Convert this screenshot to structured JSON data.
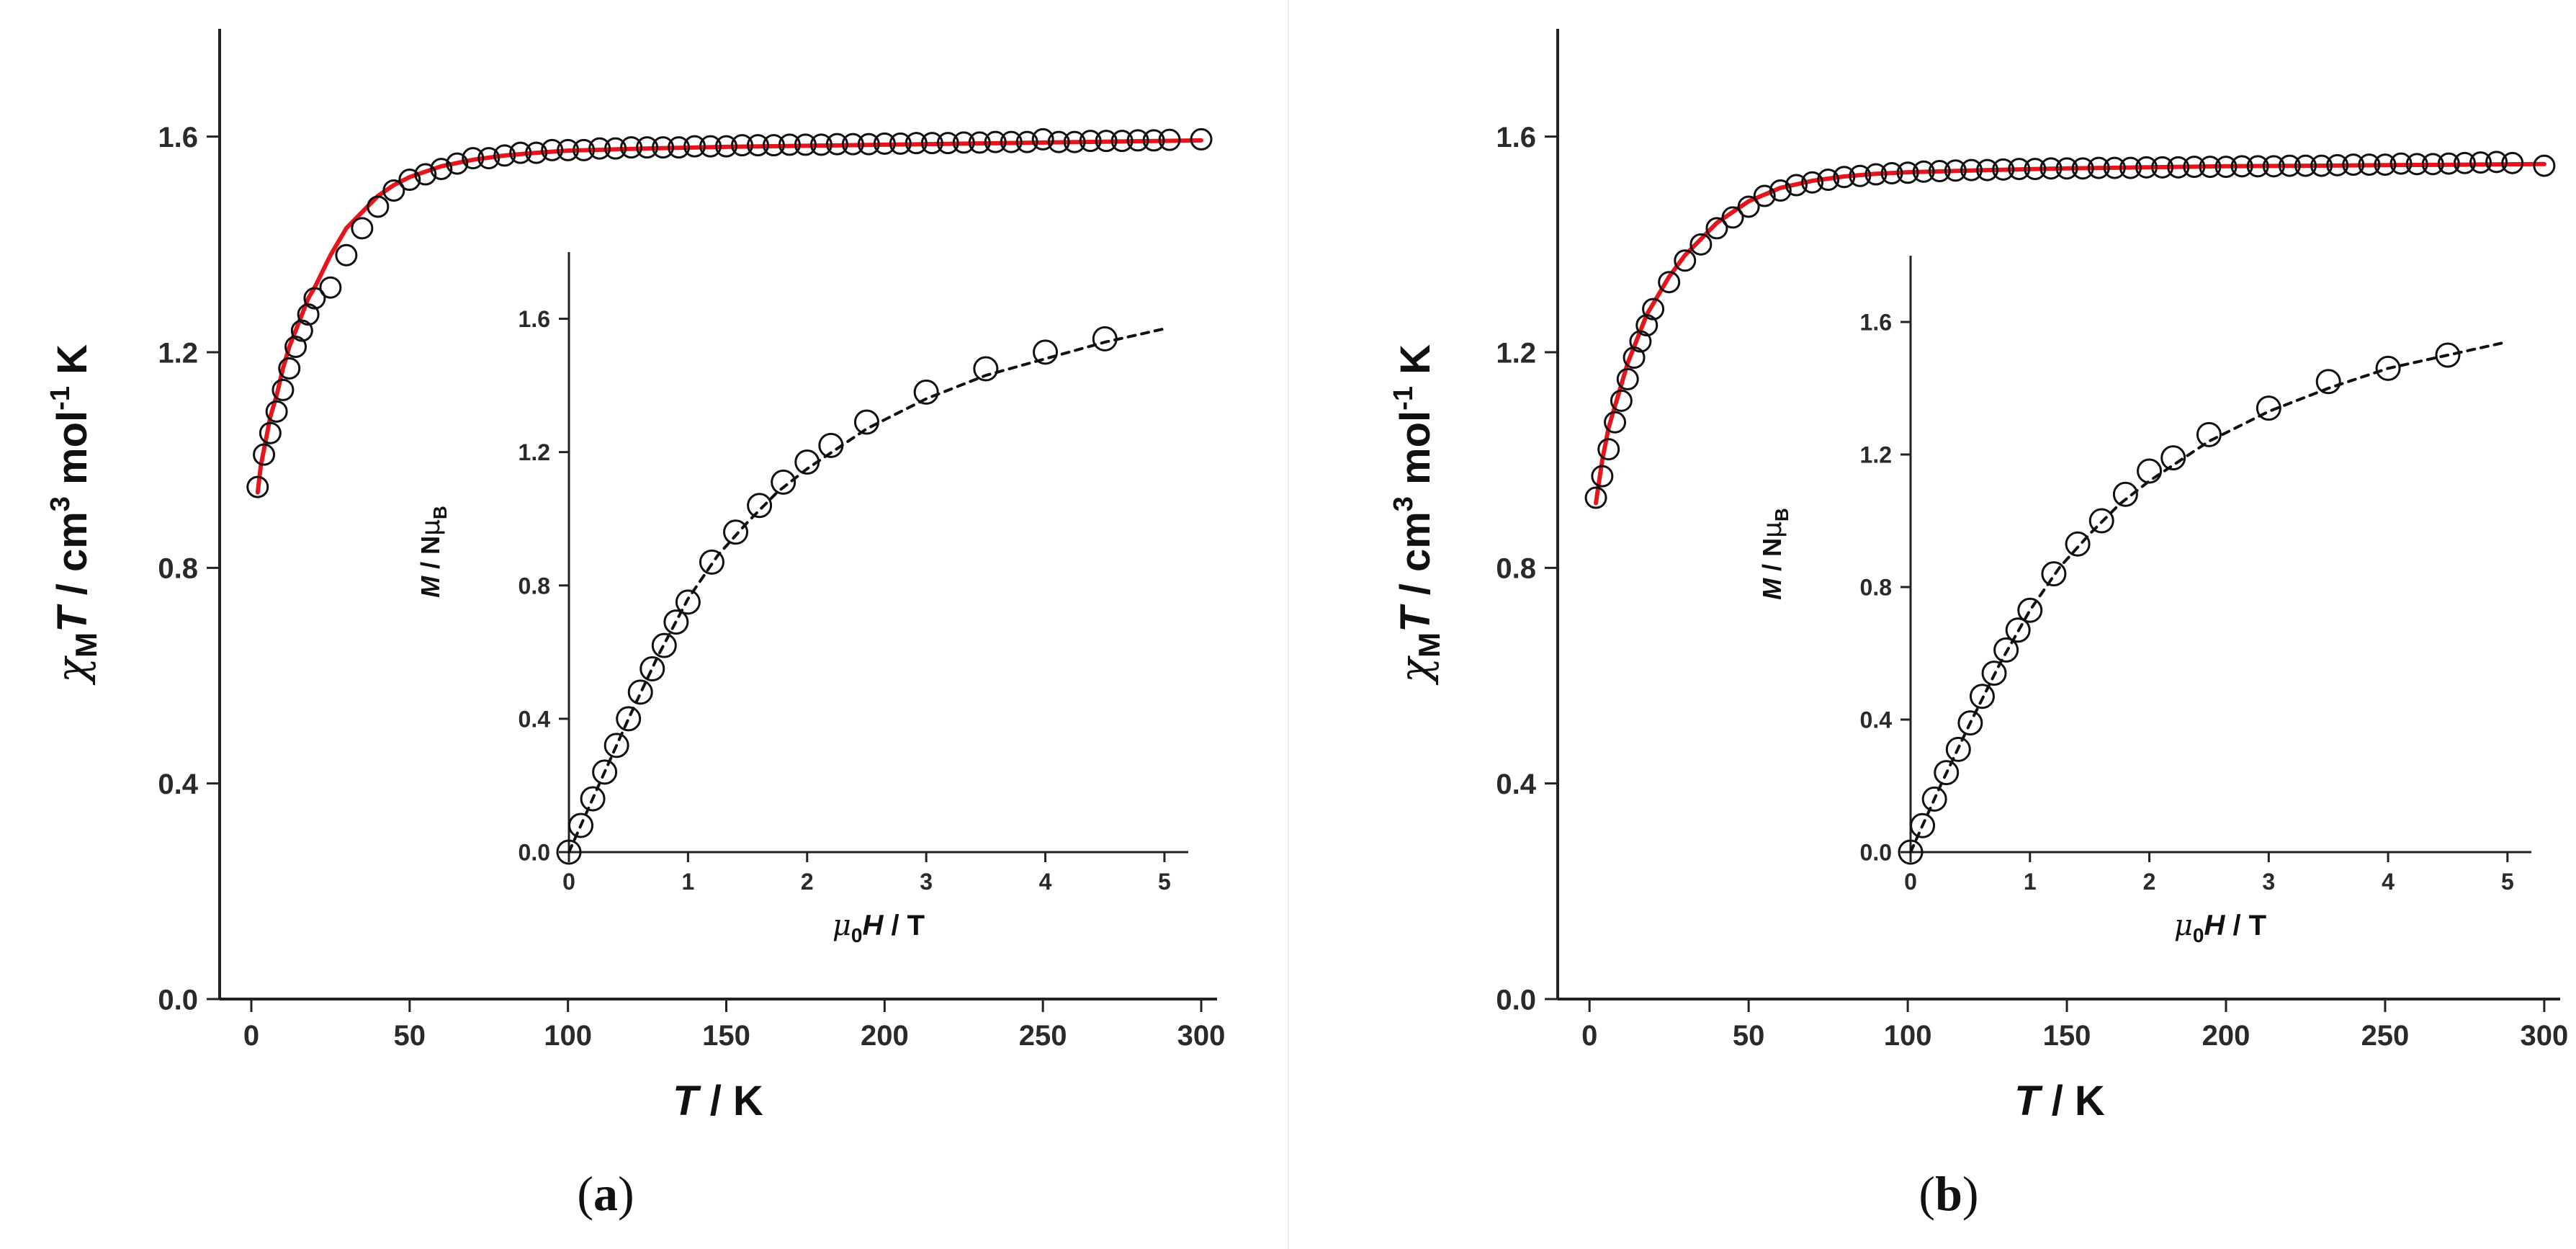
{
  "colors": {
    "fit_main": "#e8141c",
    "fit_inset": "#111111",
    "marker": "#111111",
    "axis": "#222222",
    "divider": "#ececec"
  },
  "chart_data": [
    {
      "type": "scatter",
      "panel": "a",
      "panel_label": {
        "open": "(",
        "letter": "a",
        "close": ")"
      },
      "main": {
        "xlabel": {
          "var": "T",
          "unit": " / K"
        },
        "ylabel": {
          "chi": "χ",
          "sub": "M",
          "var": "T",
          "p1": " / cm",
          "sup3": "3",
          "p2": " mol",
          "supm1": "-1",
          "p3": " K"
        },
        "xlim": [
          -10,
          305
        ],
        "ylim": [
          0,
          1.8
        ],
        "xticks": [
          0,
          50,
          100,
          150,
          200,
          250,
          300
        ],
        "xticklabels": [
          "0",
          "50",
          "100",
          "150",
          "200",
          "250",
          "300"
        ],
        "yticks": [
          0,
          0.4,
          0.8,
          1.2,
          1.6
        ],
        "yticklabels": [
          "0.0",
          "0.4",
          "0.8",
          "1.2",
          "1.6"
        ],
        "series": [
          {
            "name": "experimental",
            "style": "open-circle",
            "x": [
              2,
              4,
              6,
              8,
              10,
              12,
              14,
              16,
              18,
              20,
              25,
              30,
              35,
              40,
              45,
              50,
              55,
              60,
              65,
              70,
              75,
              80,
              85,
              90,
              95,
              100,
              105,
              110,
              115,
              120,
              125,
              130,
              135,
              140,
              145,
              150,
              155,
              160,
              165,
              170,
              175,
              180,
              185,
              190,
              195,
              200,
              205,
              210,
              215,
              220,
              225,
              230,
              235,
              240,
              245,
              250,
              255,
              260,
              265,
              270,
              275,
              280,
              285,
              290,
              300
            ],
            "y": [
              0.95,
              1.01,
              1.05,
              1.09,
              1.13,
              1.17,
              1.21,
              1.24,
              1.27,
              1.3,
              1.32,
              1.38,
              1.43,
              1.47,
              1.5,
              1.52,
              1.53,
              1.54,
              1.55,
              1.56,
              1.56,
              1.565,
              1.57,
              1.57,
              1.575,
              1.575,
              1.575,
              1.578,
              1.578,
              1.58,
              1.58,
              1.58,
              1.58,
              1.582,
              1.582,
              1.582,
              1.584,
              1.584,
              1.584,
              1.585,
              1.585,
              1.585,
              1.586,
              1.586,
              1.586,
              1.587,
              1.587,
              1.588,
              1.588,
              1.588,
              1.589,
              1.589,
              1.59,
              1.59,
              1.59,
              1.595,
              1.59,
              1.59,
              1.592,
              1.592,
              1.592,
              1.593,
              1.593,
              1.594,
              1.595
            ]
          },
          {
            "name": "fit",
            "style": "red-line",
            "x": [
              2,
              3,
              4,
              5,
              6,
              8,
              10,
              12,
              14,
              16,
              18,
              20,
              25,
              30,
              35,
              40,
              45,
              50,
              60,
              70,
              80,
              90,
              100,
              125,
              150,
              175,
              200,
              225,
              250,
              275,
              300
            ],
            "y": [
              0.94,
              0.99,
              1.02,
              1.05,
              1.08,
              1.12,
              1.17,
              1.21,
              1.24,
              1.27,
              1.3,
              1.32,
              1.38,
              1.43,
              1.46,
              1.49,
              1.51,
              1.525,
              1.545,
              1.557,
              1.565,
              1.57,
              1.574,
              1.578,
              1.581,
              1.583,
              1.585,
              1.587,
              1.589,
              1.591,
              1.593
            ]
          }
        ]
      },
      "inset": {
        "xlabel": {
          "mu": "μ",
          "sub0": "0",
          "var": "H",
          "unit": "  / T"
        },
        "ylabel": {
          "var": "M",
          "mid": " / N",
          "mu": "μ",
          "subB": "B"
        },
        "xlim": [
          0,
          5.2
        ],
        "ylim": [
          0,
          1.8
        ],
        "xticks": [
          0,
          1,
          2,
          3,
          4,
          5
        ],
        "xticklabels": [
          "0",
          "1",
          "2",
          "3",
          "4",
          "5"
        ],
        "yticks": [
          0,
          0.4,
          0.8,
          1.2,
          1.6
        ],
        "yticklabels": [
          "0.0",
          "0.4",
          "0.8",
          "1.2",
          "1.6"
        ],
        "series": [
          {
            "name": "experimental",
            "style": "open-circle",
            "x": [
              0,
              0.1,
              0.2,
              0.3,
              0.4,
              0.5,
              0.6,
              0.7,
              0.8,
              0.9,
              1.0,
              1.2,
              1.4,
              1.6,
              1.8,
              2.0,
              2.2,
              2.5,
              3.0,
              3.5,
              4.0,
              4.5
            ],
            "y": [
              0,
              0.08,
              0.16,
              0.24,
              0.32,
              0.4,
              0.48,
              0.55,
              0.62,
              0.69,
              0.75,
              0.87,
              0.96,
              1.04,
              1.11,
              1.17,
              1.22,
              1.29,
              1.38,
              1.45,
              1.5,
              1.54
            ]
          },
          {
            "name": "fit",
            "style": "dashed-line",
            "x": [
              0,
              0.25,
              0.5,
              0.75,
              1.0,
              1.25,
              1.5,
              1.75,
              2.0,
              2.5,
              3.0,
              3.5,
              4.0,
              4.5,
              5.0
            ],
            "y": [
              0,
              0.2,
              0.4,
              0.59,
              0.76,
              0.89,
              0.99,
              1.08,
              1.15,
              1.27,
              1.36,
              1.43,
              1.48,
              1.53,
              1.57
            ]
          }
        ]
      }
    },
    {
      "type": "scatter",
      "panel": "b",
      "panel_label": {
        "open": "(",
        "letter": "b",
        "close": ")"
      },
      "main": {
        "xlabel": {
          "var": "T",
          "unit": " / K"
        },
        "ylabel": {
          "chi": "χ",
          "sub": "M",
          "var": "T",
          "p1": " / cm",
          "sup3": "3",
          "p2": " mol",
          "supm1": "-1",
          "p3": " K"
        },
        "xlim": [
          -10,
          305
        ],
        "ylim": [
          0,
          1.8
        ],
        "xticks": [
          0,
          50,
          100,
          150,
          200,
          250,
          300
        ],
        "xticklabels": [
          "0",
          "50",
          "100",
          "150",
          "200",
          "250",
          "300"
        ],
        "yticks": [
          0,
          0.4,
          0.8,
          1.2,
          1.6
        ],
        "yticklabels": [
          "0.0",
          "0.4",
          "0.8",
          "1.2",
          "1.6"
        ],
        "series": [
          {
            "name": "experimental",
            "style": "open-circle",
            "x": [
              2,
              4,
              6,
              8,
              10,
              12,
              14,
              16,
              18,
              20,
              25,
              30,
              35,
              40,
              45,
              50,
              55,
              60,
              65,
              70,
              75,
              80,
              85,
              90,
              95,
              100,
              105,
              110,
              115,
              120,
              125,
              130,
              135,
              140,
              145,
              150,
              155,
              160,
              165,
              170,
              175,
              180,
              185,
              190,
              195,
              200,
              205,
              210,
              215,
              220,
              225,
              230,
              235,
              240,
              245,
              250,
              255,
              260,
              265,
              270,
              275,
              280,
              285,
              290,
              300
            ],
            "y": [
              0.93,
              0.97,
              1.02,
              1.07,
              1.11,
              1.15,
              1.19,
              1.22,
              1.25,
              1.28,
              1.33,
              1.37,
              1.4,
              1.43,
              1.45,
              1.47,
              1.49,
              1.5,
              1.51,
              1.515,
              1.52,
              1.525,
              1.527,
              1.53,
              1.532,
              1.533,
              1.535,
              1.536,
              1.537,
              1.538,
              1.538,
              1.539,
              1.54,
              1.54,
              1.541,
              1.541,
              1.541,
              1.542,
              1.542,
              1.542,
              1.543,
              1.543,
              1.543,
              1.544,
              1.544,
              1.544,
              1.545,
              1.545,
              1.545,
              1.546,
              1.546,
              1.546,
              1.547,
              1.548,
              1.548,
              1.548,
              1.55,
              1.549,
              1.549,
              1.55,
              1.551,
              1.552,
              1.553,
              1.551,
              1.546
            ]
          },
          {
            "name": "fit",
            "style": "red-line",
            "x": [
              2,
              3,
              4,
              5,
              6,
              8,
              10,
              12,
              14,
              16,
              18,
              20,
              25,
              30,
              35,
              40,
              45,
              50,
              60,
              70,
              80,
              90,
              100,
              125,
              150,
              175,
              200,
              225,
              250,
              275,
              300
            ],
            "y": [
              0.92,
              0.96,
              1.0,
              1.03,
              1.06,
              1.1,
              1.14,
              1.18,
              1.21,
              1.24,
              1.27,
              1.29,
              1.34,
              1.38,
              1.41,
              1.44,
              1.46,
              1.48,
              1.505,
              1.518,
              1.526,
              1.531,
              1.534,
              1.538,
              1.541,
              1.543,
              1.545,
              1.546,
              1.547,
              1.548,
              1.549
            ]
          }
        ]
      },
      "inset": {
        "xlabel": {
          "mu": "μ",
          "sub0": "0",
          "var": "H",
          "unit": "  / T"
        },
        "ylabel": {
          "var": "M",
          "mid": " / N",
          "mu": "μ",
          "subB": "B"
        },
        "xlim": [
          0,
          5.2
        ],
        "ylim": [
          0,
          1.8
        ],
        "xticks": [
          0,
          1,
          2,
          3,
          4,
          5
        ],
        "xticklabels": [
          "0",
          "1",
          "2",
          "3",
          "4",
          "5"
        ],
        "yticks": [
          0,
          0.4,
          0.8,
          1.2,
          1.6
        ],
        "yticklabels": [
          "0.0",
          "0.4",
          "0.8",
          "1.2",
          "1.6"
        ],
        "series": [
          {
            "name": "experimental",
            "style": "open-circle",
            "x": [
              0,
              0.1,
              0.2,
              0.3,
              0.4,
              0.5,
              0.6,
              0.7,
              0.8,
              0.9,
              1.0,
              1.2,
              1.4,
              1.6,
              1.8,
              2.0,
              2.2,
              2.5,
              3.0,
              3.5,
              4.0,
              4.5
            ],
            "y": [
              0,
              0.08,
              0.16,
              0.24,
              0.31,
              0.39,
              0.47,
              0.54,
              0.61,
              0.67,
              0.73,
              0.84,
              0.93,
              1.0,
              1.08,
              1.15,
              1.19,
              1.26,
              1.34,
              1.42,
              1.46,
              1.5
            ]
          },
          {
            "name": "fit",
            "style": "dashed-line",
            "x": [
              0,
              0.25,
              0.5,
              0.75,
              1.0,
              1.25,
              1.5,
              1.75,
              2.0,
              2.5,
              3.0,
              3.5,
              4.0,
              4.5,
              5.0
            ],
            "y": [
              0,
              0.2,
              0.39,
              0.57,
              0.73,
              0.86,
              0.96,
              1.05,
              1.12,
              1.24,
              1.33,
              1.4,
              1.46,
              1.5,
              1.54
            ]
          }
        ]
      }
    }
  ]
}
